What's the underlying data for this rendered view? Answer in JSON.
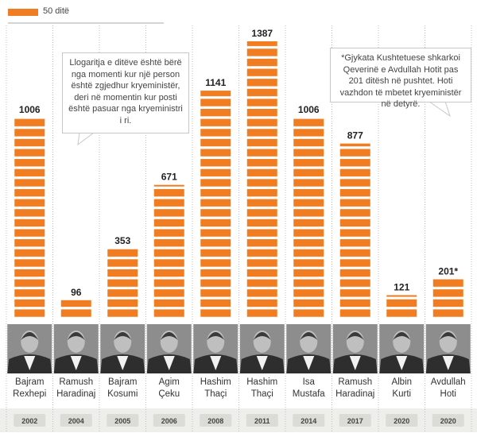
{
  "chart_data": {
    "type": "unit-bar",
    "legend_label": "50 ditë",
    "unit": 50,
    "color": "#f07d22",
    "categories": [
      "Bajram Rexhepi",
      "Ramush Haradinaj",
      "Bajram Kosumi",
      "Agim Çeku",
      "Hashim Thaçi",
      "Hashim Thaçi",
      "Isa Mustafa",
      "Ramush Haradinaj",
      "Albin Kurti",
      "Avdullah Hoti"
    ],
    "years": [
      "2002",
      "2004",
      "2005",
      "2006",
      "2008",
      "2011",
      "2014",
      "2017",
      "2020",
      "2020"
    ],
    "values": [
      1006,
      96,
      353,
      671,
      1141,
      1387,
      1006,
      877,
      121,
      201
    ],
    "value_labels": [
      "1006",
      "96",
      "353",
      "671",
      "1141",
      "1387",
      "1006",
      "877",
      "121",
      "201*"
    ],
    "annotations": [
      "Llogaritja e ditëve është bërë nga momenti kur një person është zgjedhur kryeministër, deri në momentin kur posti është pasuar nga kryeministri i ri.",
      "*Gjykata Kushtetuese shkarkoi Qeverinë e Avdullah Hotit pas 201 ditësh në pushtet. Hoti vazhdon të mbetet kryeministër në detyrë."
    ]
  }
}
